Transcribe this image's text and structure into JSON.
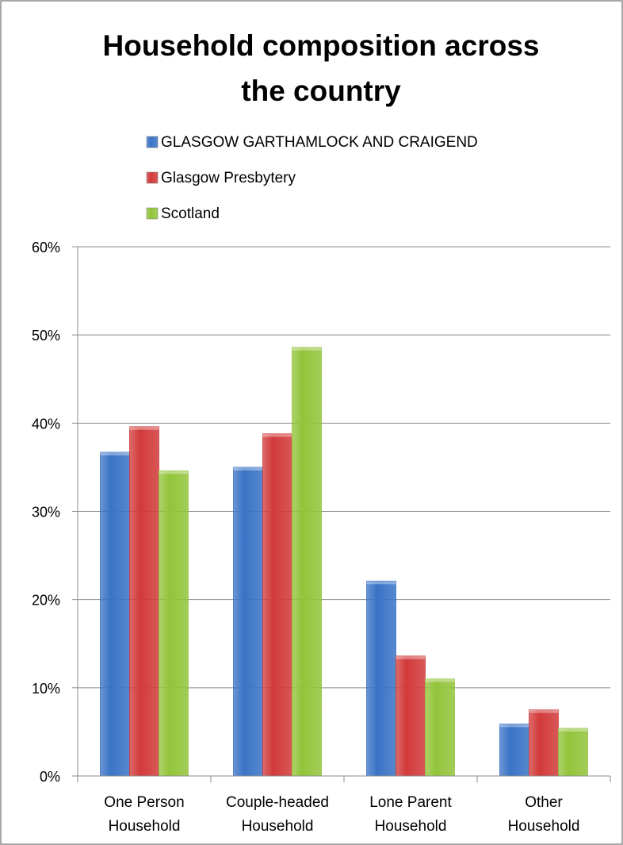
{
  "chart_data": {
    "type": "bar",
    "title": "Household composition across the country",
    "title_lines": [
      "Household composition across",
      "the country"
    ],
    "categories": [
      "One Person Household",
      "Couple-headed Household",
      "Lone Parent Household",
      "Other Household"
    ],
    "category_lines": [
      [
        "One Person",
        "Household"
      ],
      [
        "Couple-headed",
        "Household"
      ],
      [
        "Lone Parent",
        "Household"
      ],
      [
        "Other",
        "Household"
      ]
    ],
    "series": [
      {
        "name": "GLASGOW GARTHAMLOCK AND CRAIGEND",
        "color": "#3a73c6",
        "values": [
          36.7,
          35.0,
          22.1,
          5.9
        ]
      },
      {
        "name": "Glasgow Presbytery",
        "color": "#d23a3a",
        "values": [
          39.6,
          38.8,
          13.6,
          7.5
        ]
      },
      {
        "name": "Scotland",
        "color": "#92c43a",
        "values": [
          34.6,
          48.6,
          11.0,
          5.4
        ]
      }
    ],
    "ylim": [
      0,
      60
    ],
    "y_ticks": [
      "0%",
      "10%",
      "20%",
      "30%",
      "40%",
      "50%",
      "60%"
    ],
    "y_tick_values": [
      0,
      10,
      20,
      30,
      40,
      50,
      60
    ],
    "xlabel": "",
    "ylabel": "",
    "grid": true,
    "legend_position": "top"
  }
}
